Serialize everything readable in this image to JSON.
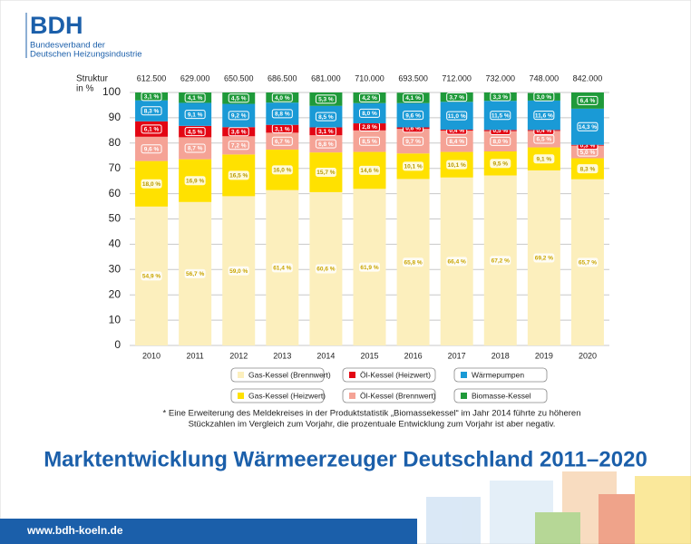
{
  "header": {
    "logo": "BDH",
    "org_lines": [
      "Bundesverband der",
      "Deutschen Heizungsindustrie"
    ]
  },
  "chart_data": {
    "type": "stacked_bar",
    "title": "Marktentwicklung Wärmeerzeuger Deutschland 2011–2020",
    "y_label": [
      "Struktur",
      "in %"
    ],
    "categories": [
      "2010",
      "2011",
      "2012",
      "2013",
      "2014",
      "2015",
      "2016",
      "2017",
      "2018",
      "2019",
      "2020"
    ],
    "totals": {
      "values": [
        612500,
        629000,
        650500,
        686500,
        681000,
        710000,
        693500,
        712000,
        732000,
        748000,
        842000
      ],
      "value_labels": [
        "612.500",
        "629.000",
        "650.500",
        "686.500",
        "681.000",
        "710.000",
        "693.500",
        "712.000",
        "732.000",
        "748.000",
        "842.000"
      ]
    },
    "ylim": [
      0,
      100
    ],
    "yticks": [
      0,
      10,
      20,
      30,
      40,
      50,
      60,
      70,
      80,
      90,
      100
    ],
    "grid": true,
    "series": [
      {
        "name": "Gas-Kessel (Brennwert)",
        "color": "#fcefbd",
        "values": [
          54.9,
          56.7,
          59.0,
          61.4,
          60.6,
          61.9,
          65.8,
          66.4,
          67.2,
          69.2,
          65.7
        ],
        "value_labels": [
          "54,9 %",
          "56,7 %",
          "59,0 %",
          "61,4 %",
          "60,6 %",
          "61,9 %",
          "65,8 %",
          "66,4 %",
          "67,2 %",
          "69,2 %",
          "65,7 %"
        ]
      },
      {
        "name": "Gas-Kessel (Heizwert)",
        "color": "#ffe100",
        "values": [
          18.0,
          16.9,
          16.5,
          16.0,
          15.7,
          14.6,
          10.1,
          10.1,
          9.5,
          9.1,
          8.3
        ],
        "value_labels": [
          "18,0 %",
          "16,9 %",
          "16,5 %",
          "16,0 %",
          "15,7 %",
          "14,6 %",
          "10,1 %",
          "10,1 %",
          "9,5 %",
          "9,1 %",
          "8,3 %"
        ]
      },
      {
        "name": "Öl-Kessel (Brennwert)",
        "color": "#f5a396",
        "values": [
          9.6,
          8.7,
          7.2,
          6.7,
          6.8,
          8.5,
          9.7,
          8.4,
          8.0,
          6.5,
          5.0
        ],
        "value_labels": [
          "9,6 %",
          "8,7 %",
          "7,2 %",
          "6,7 %",
          "6,8 %",
          "8,5 %",
          "9,7 %",
          "8,4 %",
          "8,0 %",
          "6,5 %",
          "5,0 %"
        ]
      },
      {
        "name": "Öl-Kessel (Heizwert)",
        "color": "#e30613",
        "values": [
          6.1,
          4.5,
          3.6,
          3.1,
          3.1,
          2.8,
          0.6,
          0.4,
          0.5,
          0.4,
          0.3
        ],
        "value_labels": [
          "6,1 %",
          "4,5 %",
          "3,6 %",
          "3,1 %",
          "3,1 %",
          "2,8 %",
          "0,6 %",
          "0,4 %",
          "0,5 %",
          "0,4 %",
          "0,3 %"
        ]
      },
      {
        "name": "Wärmepumpen",
        "color": "#1a9ad6",
        "values": [
          8.3,
          9.1,
          9.2,
          8.8,
          8.5,
          8.0,
          9.6,
          11.0,
          11.5,
          11.6,
          14.3
        ],
        "value_labels": [
          "8,3 %",
          "9,1 %",
          "9,2 %",
          "8,8 %",
          "8,5 %",
          "8,0 %",
          "9,6 %",
          "11,0 %",
          "11,5 %",
          "11,6 %",
          "14,3 %"
        ]
      },
      {
        "name": "Biomasse-Kessel",
        "color": "#1f9a3a",
        "values": [
          3.1,
          4.1,
          4.5,
          4.0,
          5.3,
          4.2,
          4.1,
          3.7,
          3.3,
          3.0,
          6.4
        ],
        "value_labels": [
          "3,1 %",
          "4,1 %",
          "4,5 %",
          "4,0 %",
          "5,3 %",
          "4,2 %",
          "4,1 %",
          "3,7 %",
          "3,3 %",
          "3,0 %",
          "6,4 %"
        ]
      }
    ],
    "footnote": [
      "* Eine Erweiterung des Meldekreises in der Produktstatistik „Biomassekessel“ im Jahr 2014 führte zu höheren",
      "Stückzahlen im Vergleich zum Vorjahr, die prozentuale Entwicklung zum Vorjahr ist aber negativ."
    ]
  },
  "footer": {
    "url": "www.bdh-koeln.de"
  }
}
